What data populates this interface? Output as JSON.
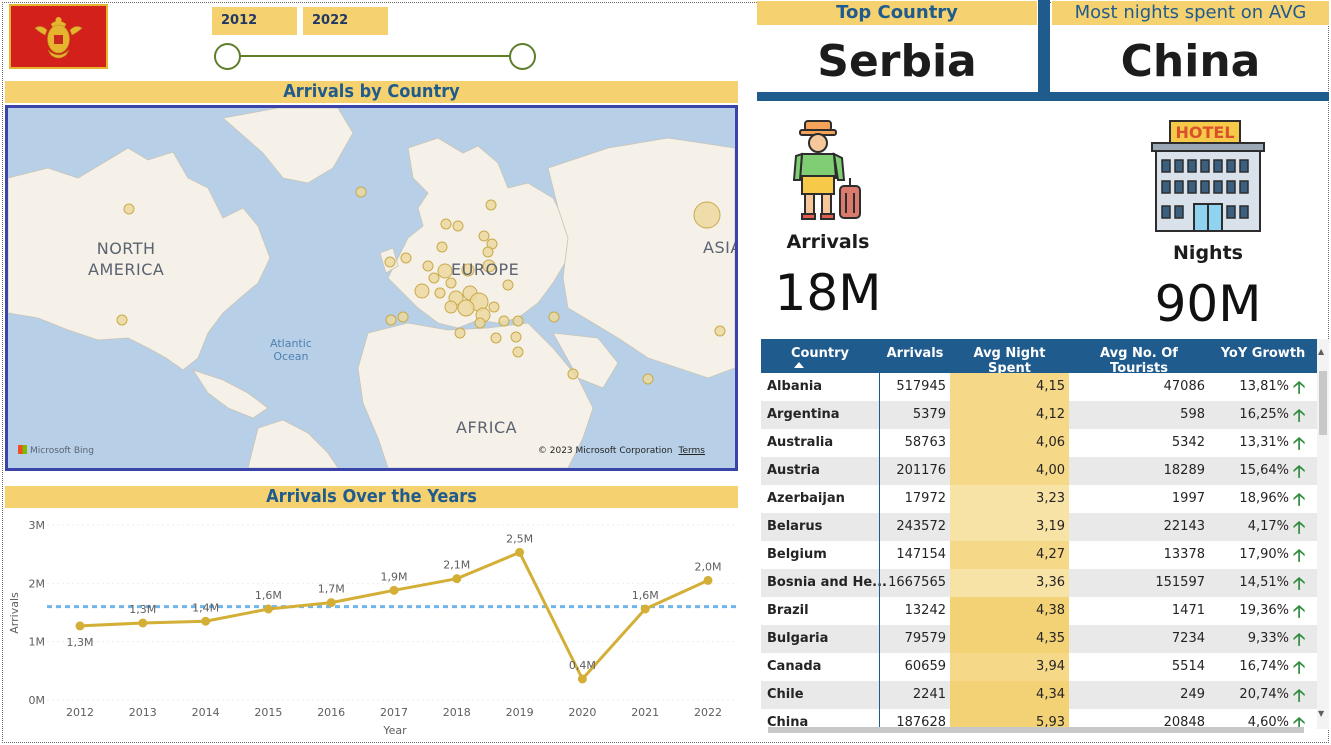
{
  "slicer": {
    "start_year": "2012",
    "end_year": "2022"
  },
  "map": {
    "title": "Arrivals by Country",
    "labels": {
      "north_america": "NORTH\nAMERICA",
      "europe": "EUROPE",
      "africa": "AFRICA",
      "asia": "ASIA",
      "ocean": "Atlantic\nOcean"
    },
    "provider": "Microsoft Bing",
    "copyright": "© 2023 Microsoft Corporation",
    "terms": "Terms"
  },
  "kpi": {
    "top_country_label": "Top Country",
    "top_country_value": "Serbia",
    "most_nights_label": "Most nights spent on AVG",
    "most_nights_value": "China",
    "arrivals_label": "Arrivals",
    "arrivals_value": "18M",
    "nights_label": "Nights",
    "nights_value": "90M",
    "hotel_sign": "HOTEL"
  },
  "chart_data": {
    "type": "line",
    "title": "Arrivals Over the Years",
    "xlabel": "Year",
    "ylabel": "Arrivals",
    "categories": [
      "2012",
      "2013",
      "2014",
      "2015",
      "2016",
      "2017",
      "2018",
      "2019",
      "2020",
      "2021",
      "2022"
    ],
    "values": [
      1.27,
      1.32,
      1.35,
      1.56,
      1.67,
      1.88,
      2.08,
      2.53,
      0.36,
      1.56,
      2.05
    ],
    "data_labels": [
      "1,3M",
      "1,3M",
      "1,4M",
      "1,6M",
      "1,7M",
      "1,9M",
      "2,1M",
      "2,5M",
      "0,4M",
      "1,6M",
      "2,0M"
    ],
    "y_ticks": [
      "0M",
      "1M",
      "2M",
      "3M"
    ],
    "ylim": [
      0,
      3
    ],
    "average_line": 1.6,
    "grid": true,
    "color": "#d4af37",
    "average_color": "#6fb7ea"
  },
  "table": {
    "columns": [
      "Country",
      "Arrivals",
      "Avg Night Spent",
      "Avg No. Of Tourists",
      "YoY Growth"
    ],
    "rows": [
      {
        "country": "Albania",
        "arrivals": "517945",
        "avg_night": "4,15",
        "avg_tourists": "47086",
        "yoy": "13,81%"
      },
      {
        "country": "Argentina",
        "arrivals": "5379",
        "avg_night": "4,12",
        "avg_tourists": "598",
        "yoy": "16,25%"
      },
      {
        "country": "Australia",
        "arrivals": "58763",
        "avg_night": "4,06",
        "avg_tourists": "5342",
        "yoy": "13,31%"
      },
      {
        "country": "Austria",
        "arrivals": "201176",
        "avg_night": "4,00",
        "avg_tourists": "18289",
        "yoy": "15,64%"
      },
      {
        "country": "Azerbaijan",
        "arrivals": "17972",
        "avg_night": "3,23",
        "avg_tourists": "1997",
        "yoy": "18,96%"
      },
      {
        "country": "Belarus",
        "arrivals": "243572",
        "avg_night": "3,19",
        "avg_tourists": "22143",
        "yoy": "4,17%"
      },
      {
        "country": "Belgium",
        "arrivals": "147154",
        "avg_night": "4,27",
        "avg_tourists": "13378",
        "yoy": "17,90%"
      },
      {
        "country": "Bosnia and He...",
        "arrivals": "1667565",
        "avg_night": "3,36",
        "avg_tourists": "151597",
        "yoy": "14,51%"
      },
      {
        "country": "Brazil",
        "arrivals": "13242",
        "avg_night": "4,38",
        "avg_tourists": "1471",
        "yoy": "19,36%"
      },
      {
        "country": "Bulgaria",
        "arrivals": "79579",
        "avg_night": "4,35",
        "avg_tourists": "7234",
        "yoy": "9,33%"
      },
      {
        "country": "Canada",
        "arrivals": "60659",
        "avg_night": "3,94",
        "avg_tourists": "5514",
        "yoy": "16,74%"
      },
      {
        "country": "Chile",
        "arrivals": "2241",
        "avg_night": "4,34",
        "avg_tourists": "249",
        "yoy": "20,74%"
      },
      {
        "country": "China",
        "arrivals": "187628",
        "avg_night": "5,93",
        "avg_tourists": "20848",
        "yoy": "4,60%"
      }
    ],
    "yoy_icon": "arrow-up-icon",
    "yoy_icon_color": "#2e8b3e",
    "avg_night_fill": "#f6d16f"
  }
}
